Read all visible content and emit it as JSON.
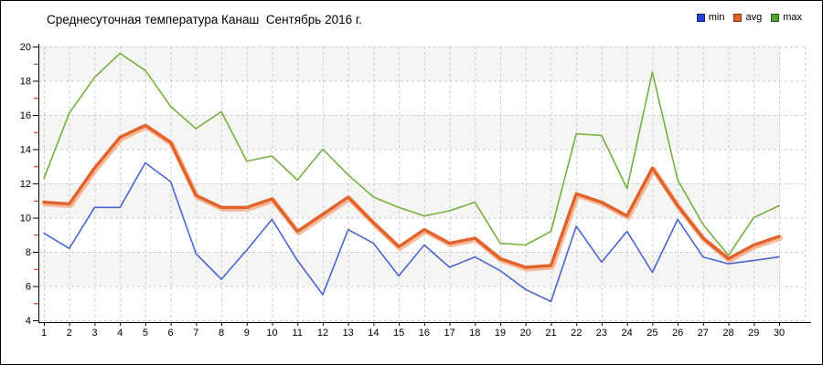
{
  "title": "Среднесуточная температура Канаш  Сентябрь 2016 г.",
  "legend": [
    {
      "label": "min",
      "color": "#2742d6"
    },
    {
      "label": "avg",
      "color": "#e8632c"
    },
    {
      "label": "max",
      "color": "#52a32e"
    }
  ],
  "chart_data": {
    "type": "line",
    "title": "Среднесуточная температура Канаш  Сентябрь 2016 г.",
    "xlabel": "",
    "ylabel": "",
    "x": [
      1,
      2,
      3,
      4,
      5,
      6,
      7,
      8,
      9,
      10,
      11,
      12,
      13,
      14,
      15,
      16,
      17,
      18,
      19,
      20,
      21,
      22,
      23,
      24,
      25,
      26,
      27,
      28,
      29,
      30
    ],
    "ylim": [
      4,
      20
    ],
    "ytick_step": 2,
    "grid": true,
    "grid_style": "dashed",
    "legend_position": "top-right",
    "series": [
      {
        "name": "min",
        "color": "#4a66d2",
        "width": 1.6,
        "values": [
          9.1,
          8.2,
          10.6,
          10.6,
          13.2,
          12.1,
          7.9,
          6.4,
          8.1,
          9.9,
          7.5,
          5.5,
          9.3,
          8.5,
          6.6,
          8.4,
          7.1,
          7.7,
          6.9,
          5.8,
          5.1,
          9.5,
          7.4,
          9.2,
          6.8,
          9.9,
          7.7,
          7.3,
          7.5,
          7.7
        ]
      },
      {
        "name": "avg",
        "color": "#e2622b",
        "halo": "#f6ad87",
        "width": 3.4,
        "values": [
          10.9,
          10.8,
          12.9,
          14.7,
          15.4,
          14.4,
          11.3,
          10.6,
          10.6,
          11.1,
          9.2,
          10.2,
          11.2,
          9.7,
          8.3,
          9.3,
          8.5,
          8.8,
          7.6,
          7.1,
          7.2,
          11.4,
          10.9,
          10.1,
          12.9,
          10.7,
          8.8,
          7.6,
          8.4,
          8.9
        ]
      },
      {
        "name": "max",
        "color": "#76b041",
        "width": 1.6,
        "values": [
          12.3,
          16.1,
          18.2,
          19.6,
          18.6,
          16.5,
          15.2,
          16.2,
          13.3,
          13.6,
          12.2,
          14.0,
          12.5,
          11.2,
          10.6,
          10.1,
          10.4,
          10.9,
          8.5,
          8.4,
          9.2,
          14.9,
          14.8,
          11.7,
          18.5,
          12.2,
          9.6,
          7.8,
          10.0,
          10.7
        ]
      }
    ],
    "style": {
      "band_fill": "#f5f5f3",
      "grid_color": "#cccccc",
      "axis_color": "#000000",
      "tick_label_color": "#000000",
      "minor_tick_color": "#cc2200",
      "background": "#ffffff"
    }
  },
  "layout_hints": {
    "y_axis_side": "left",
    "x_axis_side": "bottom",
    "alternating_bands": true
  }
}
